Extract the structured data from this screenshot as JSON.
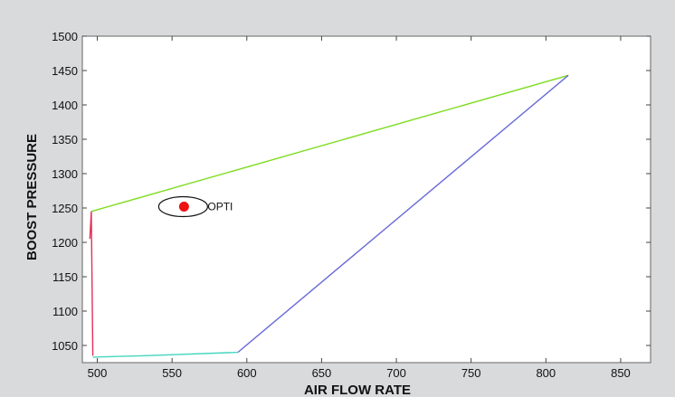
{
  "chart_data": {
    "type": "line",
    "title": "",
    "xlabel": "AIR FLOW RATE",
    "ylabel": "BOOST PRESSURE",
    "xlim": [
      490,
      870
    ],
    "ylim": [
      1025,
      1500
    ],
    "xticks": [
      500,
      550,
      600,
      650,
      700,
      750,
      800,
      850
    ],
    "yticks": [
      1050,
      1100,
      1150,
      1200,
      1250,
      1300,
      1350,
      1400,
      1450,
      1500
    ],
    "grid": false,
    "legend": "none",
    "series": [
      {
        "color": "#7ddc1f",
        "points": [
          [
            496,
            1245
          ],
          [
            815,
            1443
          ]
        ]
      },
      {
        "color": "#6a6ad8",
        "points": [
          [
            594,
            1040
          ],
          [
            815,
            1443
          ]
        ]
      },
      {
        "color": "#e0325a",
        "points": [
          [
            495,
            1205
          ],
          [
            496,
            1245
          ],
          [
            497,
            1035
          ]
        ]
      },
      {
        "color": "#45d6c0",
        "points": [
          [
            497,
            1033
          ],
          [
            530,
            1035
          ],
          [
            594,
            1040
          ]
        ]
      }
    ],
    "annotations": [
      {
        "text": "OPTI",
        "x": 558,
        "y": 1252,
        "marker_color": "#ee1111"
      }
    ]
  }
}
